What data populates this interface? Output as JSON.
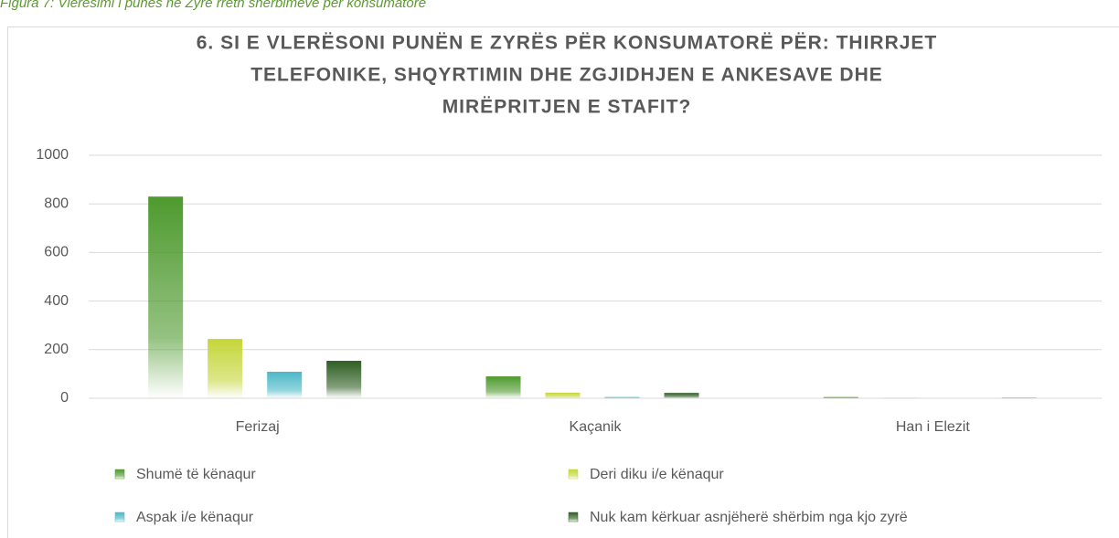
{
  "chart_data": {
    "type": "bar",
    "caption": "Figura 7: Vlerësimi i punës në Zyre rreth shërbimeve për konsumatorë",
    "title": [
      "6. SI E VLERËSONI PUNËN E ZYRËS PËR KONSUMATORË PËR: THIRRJET",
      "TELEFONIKE, SHQYRTIMIN DHE ZGJIDHJEN E ANKESAVE DHE",
      "MIRËPRITJEN E STAFIT?"
    ],
    "categories": [
      "Ferizaj",
      "Kaçanik",
      "Han i Elezit"
    ],
    "series": [
      {
        "name": "Shumë të kënaqur",
        "color": "#4e9a2e",
        "values": [
          830,
          90,
          5
        ]
      },
      {
        "name": "Deri diku i/e kënaqur",
        "color": "#c5d63a",
        "values": [
          244,
          23,
          1
        ]
      },
      {
        "name": "Aspak i/e kënaqur",
        "color": "#4bb8c8",
        "values": [
          109,
          5,
          0
        ]
      },
      {
        "name": "Nuk kam kërkuar asnjëherë shërbim nga kjo zyrë",
        "color": "#2f5e23",
        "values": [
          154,
          22,
          1
        ]
      }
    ],
    "ylim": [
      0,
      1000
    ],
    "yticks": [
      0,
      200,
      400,
      600,
      800,
      1000
    ],
    "grid": true
  }
}
